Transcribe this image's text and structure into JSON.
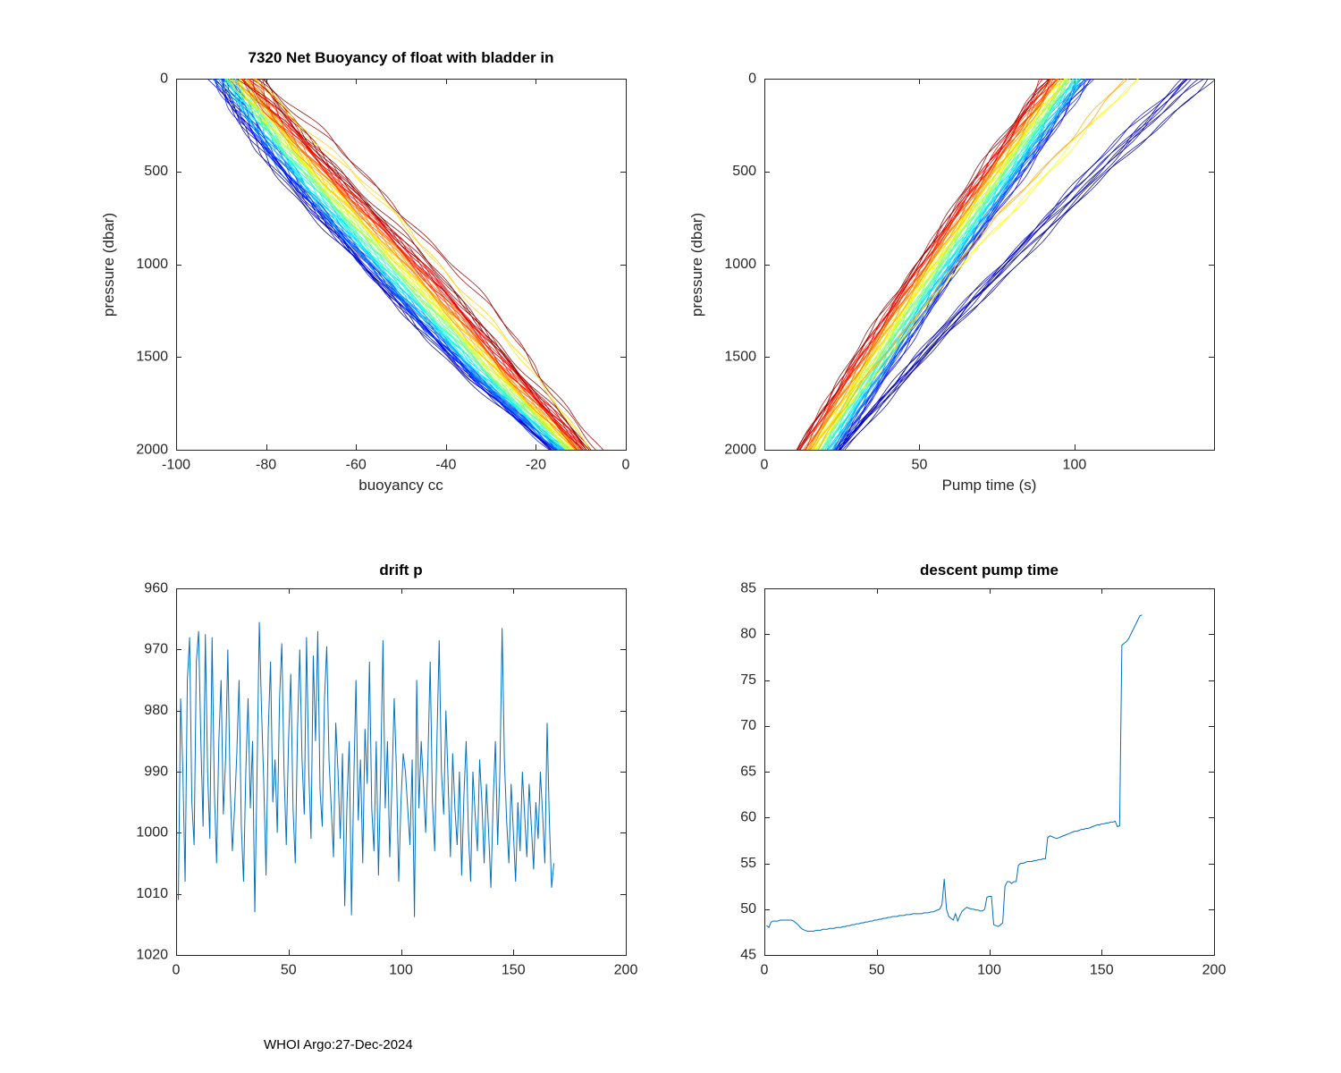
{
  "page": {
    "footer": "WHOI Argo:27-Dec-2024",
    "background": "#ffffff"
  },
  "chart_data": [
    {
      "id": "buoyancy",
      "type": "line",
      "title": "7320 Net Buoyancy of float with bladder in",
      "xlabel": "buoyancy cc",
      "ylabel": "pressure (dbar)",
      "xlim": [
        -100,
        0
      ],
      "ylim": [
        0,
        2000
      ],
      "y_reversed": true,
      "xticks": [
        -100,
        -80,
        -60,
        -40,
        -20,
        0
      ],
      "yticks": [
        0,
        500,
        1000,
        1500,
        2000
      ],
      "grid": false,
      "legend": "none",
      "colormap": "jet",
      "profile_base": {
        "pressure": [
          0,
          200,
          400,
          600,
          800,
          1000,
          1200,
          1400,
          1600,
          1800,
          2000
        ],
        "value": [
          -87,
          -81,
          -74.5,
          -67.5,
          -60,
          -52.5,
          -45,
          -37.5,
          -30,
          -21.5,
          -13
        ]
      },
      "profiles": [
        [
          0.0,
          -5,
          -7,
          -4
        ],
        [
          0.03,
          -4.5,
          -6.5,
          -3.5
        ],
        [
          0.06,
          -4,
          -6,
          -3
        ],
        [
          0.09,
          -3.5,
          -5.5,
          -3
        ],
        [
          0.12,
          -3,
          -5,
          -2.5
        ],
        [
          0.15,
          -3.5,
          -5.8,
          -3.2
        ],
        [
          0.18,
          -2.5,
          -4.5,
          -2
        ],
        [
          0.21,
          -3,
          -5.2,
          -2.8
        ],
        [
          0.24,
          -2,
          -4,
          -2
        ],
        [
          0.27,
          -2.5,
          -3.8,
          -1.8
        ],
        [
          0.3,
          -1.5,
          -3.2,
          -1.5
        ],
        [
          0.33,
          -2,
          -2.8,
          -1.2
        ],
        [
          0.36,
          -1,
          -2.5,
          -1
        ],
        [
          0.39,
          -1.5,
          -2,
          -0.7
        ],
        [
          0.42,
          -0.5,
          -1.5,
          -0.5
        ],
        [
          0.45,
          -1,
          -1,
          -0.2
        ],
        [
          0.48,
          -0.5,
          -0.5,
          0
        ],
        [
          0.51,
          0,
          0,
          0.2
        ],
        [
          0.54,
          -0.5,
          0.5,
          0.5
        ],
        [
          0.57,
          0.5,
          1,
          0.8
        ],
        [
          0.6,
          0,
          1.5,
          1
        ],
        [
          0.63,
          1,
          2,
          1.2
        ],
        [
          0.66,
          0.5,
          2.5,
          1.5
        ],
        [
          0.69,
          1.5,
          3,
          1.8
        ],
        [
          0.72,
          1,
          3.5,
          2
        ],
        [
          0.75,
          2,
          4,
          2.2
        ],
        [
          0.78,
          1.5,
          4.5,
          2.5
        ],
        [
          0.81,
          2.5,
          5,
          2.8
        ],
        [
          0.84,
          2,
          5.5,
          3
        ],
        [
          0.87,
          3,
          6,
          3.2
        ],
        [
          0.9,
          2.5,
          6.5,
          3.5
        ],
        [
          0.93,
          3.5,
          7,
          3.8
        ],
        [
          0.96,
          3,
          7.5,
          4
        ],
        [
          1.0,
          4,
          8.5,
          4.5
        ],
        [
          0.66,
          5,
          11,
          5.5
        ],
        [
          0.97,
          6,
          13.5,
          6.5
        ]
      ]
    },
    {
      "id": "pump_time",
      "type": "line",
      "title": "",
      "xlabel": "Pump time (s)",
      "ylabel": "pressure (dbar)",
      "xlim": [
        0,
        145
      ],
      "ylim": [
        0,
        2000
      ],
      "y_reversed": true,
      "xticks": [
        0,
        50,
        100
      ],
      "yticks": [
        0,
        500,
        1000,
        1500,
        2000
      ],
      "grid": false,
      "legend": "none",
      "colormap": "jet",
      "profile_base": {
        "pressure": [
          0,
          200,
          400,
          600,
          800,
          1000,
          1200,
          1400,
          1600,
          1800,
          2000
        ],
        "value": [
          95,
          87,
          79,
          71,
          63,
          55,
          47,
          39,
          31,
          23,
          15
        ]
      },
      "profiles": [
        [
          0.0,
          48,
          26,
          10
        ],
        [
          0.02,
          45,
          24,
          9
        ],
        [
          0.03,
          43,
          23,
          9
        ],
        [
          0.05,
          41,
          22,
          8
        ],
        [
          0.06,
          39,
          21,
          8
        ],
        [
          0.1,
          10,
          8,
          9
        ],
        [
          0.13,
          9,
          7.5,
          8.5
        ],
        [
          0.16,
          8.5,
          7,
          8
        ],
        [
          0.19,
          8,
          6.5,
          7.5
        ],
        [
          0.22,
          7.5,
          6,
          7
        ],
        [
          0.25,
          7,
          5.5,
          6.5
        ],
        [
          0.28,
          6.5,
          5,
          6
        ],
        [
          0.31,
          6,
          4.5,
          5.5
        ],
        [
          0.34,
          5.5,
          4,
          5
        ],
        [
          0.37,
          5,
          3.5,
          4.5
        ],
        [
          0.4,
          4.5,
          3,
          4
        ],
        [
          0.43,
          4,
          2.5,
          3.5
        ],
        [
          0.46,
          3.5,
          2,
          3
        ],
        [
          0.49,
          3,
          1.5,
          2.5
        ],
        [
          0.52,
          2.5,
          1,
          2
        ],
        [
          0.55,
          2,
          0.5,
          1.5
        ],
        [
          0.58,
          1.5,
          0,
          1
        ],
        [
          0.61,
          1,
          -0.5,
          0.5
        ],
        [
          0.64,
          0.5,
          -1,
          0
        ],
        [
          0.67,
          0,
          -1.5,
          -0.5
        ],
        [
          0.7,
          -0.5,
          -2,
          -1
        ],
        [
          0.73,
          -1,
          -2.5,
          -1.5
        ],
        [
          0.76,
          -1.5,
          -3,
          -2
        ],
        [
          0.79,
          -2,
          -3.5,
          -2.5
        ],
        [
          0.82,
          -2.5,
          -4,
          -3
        ],
        [
          0.85,
          -3,
          -4.5,
          -3.5
        ],
        [
          0.88,
          -3.5,
          -5,
          -4
        ],
        [
          0.92,
          -4,
          -5.5,
          -4.5
        ],
        [
          1.0,
          -5,
          -6.5,
          -5
        ],
        [
          0.62,
          26,
          9,
          2
        ],
        [
          0.7,
          22,
          7,
          1
        ]
      ]
    },
    {
      "id": "drift_p",
      "type": "line",
      "title": "drift p",
      "xlabel": "",
      "ylabel": "",
      "xlim": [
        0,
        200
      ],
      "ylim": [
        960,
        1020
      ],
      "y_reversed": true,
      "xticks": [
        0,
        50,
        100,
        150,
        200
      ],
      "yticks": [
        960,
        970,
        980,
        990,
        1000,
        1010,
        1020
      ],
      "grid": false,
      "legend": "none",
      "line_color": "#0072BD",
      "x_start": 1,
      "values": [
        1011,
        978,
        990,
        1008,
        975,
        968,
        995,
        1002,
        972,
        967,
        985,
        999,
        967.5,
        990,
        1001,
        968,
        993,
        1005,
        985,
        975,
        997,
        988,
        970,
        992,
        1003,
        996,
        987,
        975,
        999,
        1008,
        990,
        978,
        996,
        985,
        1013,
        990,
        965.5,
        980,
        992,
        1007,
        983,
        972,
        995,
        988,
        1000,
        978,
        969,
        990,
        1002,
        985,
        974,
        996,
        1005,
        983,
        970,
        988,
        997,
        968,
        990,
        1001,
        971,
        985,
        967,
        993,
        999,
        978,
        969.5,
        988,
        996,
        1004,
        982,
        990,
        1001,
        987,
        1012,
        995,
        985,
        1013.5,
        992,
        975,
        998,
        988,
        1005,
        983,
        992,
        972,
        996,
        1003,
        985,
        1007,
        990,
        968.5,
        996,
        985,
        1004,
        992,
        978,
        990,
        1008,
        995,
        987,
        990,
        996,
        1002,
        988,
        1013.8,
        975,
        996,
        985,
        992,
        1000,
        988,
        972,
        995,
        1003,
        985,
        968.5,
        990,
        997,
        980,
        992,
        1004,
        987,
        996,
        1002,
        990,
        1007,
        994,
        985,
        1000,
        1008,
        990,
        997,
        1003,
        988,
        995,
        1005,
        992,
        1000,
        1009,
        995,
        985,
        1002,
        990,
        966.5,
        988,
        998,
        1005,
        992,
        1000,
        1008,
        995,
        1003,
        990,
        997,
        1004,
        992,
        999,
        1006,
        995,
        1001,
        990,
        997,
        1005,
        982,
        998,
        1009,
        1005
      ]
    },
    {
      "id": "descent_pump_time",
      "type": "line",
      "title": "descent pump time",
      "xlabel": "",
      "ylabel": "",
      "xlim": [
        0,
        200
      ],
      "ylim": [
        45,
        85
      ],
      "y_reversed": false,
      "xticks": [
        0,
        50,
        100,
        150,
        200
      ],
      "yticks": [
        45,
        50,
        55,
        60,
        65,
        70,
        75,
        80,
        85
      ],
      "grid": false,
      "legend": "none",
      "line_color": "#0072BD",
      "x_start": 1,
      "values": [
        48.2,
        48.0,
        48.6,
        48.7,
        48.7,
        48.7,
        48.8,
        48.8,
        48.8,
        48.8,
        48.8,
        48.8,
        48.7,
        48.5,
        48.3,
        48.0,
        47.8,
        47.7,
        47.6,
        47.6,
        47.6,
        47.6,
        47.7,
        47.7,
        47.7,
        47.8,
        47.8,
        47.8,
        47.9,
        47.9,
        47.9,
        48.0,
        48.0,
        48.0,
        48.1,
        48.1,
        48.2,
        48.2,
        48.3,
        48.3,
        48.4,
        48.4,
        48.5,
        48.5,
        48.6,
        48.6,
        48.7,
        48.7,
        48.8,
        48.8,
        48.9,
        48.9,
        49.0,
        49.0,
        49.1,
        49.1,
        49.2,
        49.2,
        49.2,
        49.3,
        49.3,
        49.3,
        49.4,
        49.4,
        49.4,
        49.5,
        49.5,
        49.5,
        49.5,
        49.5,
        49.6,
        49.6,
        49.6,
        49.7,
        49.7,
        49.8,
        49.9,
        50.0,
        50.5,
        53.3,
        50.0,
        49.2,
        49.0,
        48.8,
        49.5,
        48.7,
        49.3,
        49.8,
        50.0,
        50.2,
        50.1,
        50.0,
        50.0,
        49.9,
        49.9,
        49.8,
        49.8,
        50.0,
        51.3,
        51.4,
        51.4,
        48.3,
        48.2,
        48.1,
        48.3,
        48.5,
        52.5,
        53.0,
        53.0,
        52.8,
        53.0,
        53.0,
        54.8,
        55.0,
        55.0,
        55.1,
        55.2,
        55.2,
        55.2,
        55.3,
        55.3,
        55.4,
        55.4,
        55.5,
        55.5,
        57.8,
        58.0,
        57.9,
        57.8,
        57.7,
        57.8,
        57.9,
        58.0,
        58.1,
        58.2,
        58.3,
        58.4,
        58.5,
        58.5,
        58.6,
        58.7,
        58.7,
        58.8,
        58.8,
        58.9,
        59.0,
        59.1,
        59.2,
        59.2,
        59.3,
        59.3,
        59.4,
        59.4,
        59.5,
        59.5,
        59.6,
        59.0,
        59.1,
        78.8,
        79.0,
        79.2,
        79.5,
        80.0,
        80.5,
        81.0,
        81.5,
        82.0,
        82.1
      ]
    }
  ]
}
